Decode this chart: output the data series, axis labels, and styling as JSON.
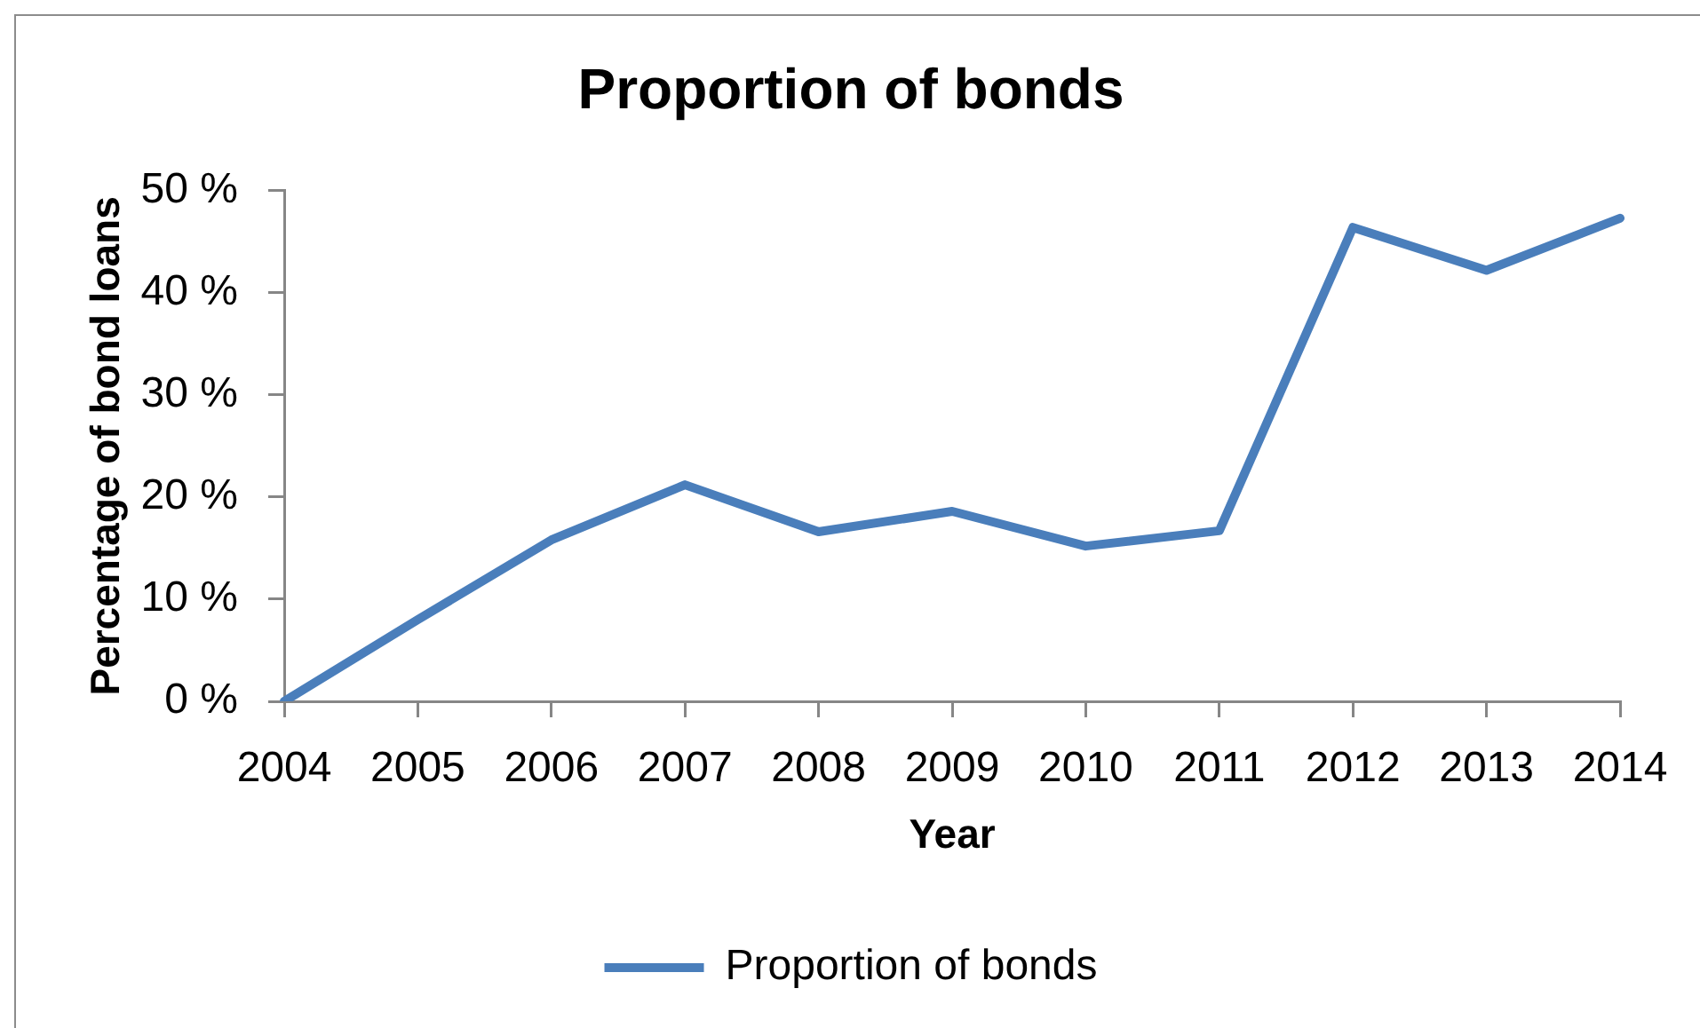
{
  "chart_data": {
    "type": "line",
    "title": "Proportion of bonds",
    "xlabel": "Year",
    "ylabel": "Percentage of bond loans",
    "categories": [
      "2004",
      "2005",
      "2006",
      "2007",
      "2008",
      "2009",
      "2010",
      "2011",
      "2012",
      "2013",
      "2014"
    ],
    "series": [
      {
        "name": "Proportion of bonds",
        "color": "#4a7ebb",
        "values": [
          0,
          8,
          15.8,
          21.2,
          16.6,
          18.6,
          15.2,
          16.7,
          46.4,
          42.2,
          47.3
        ]
      }
    ],
    "ylim": [
      0,
      50
    ],
    "yticks": [
      {
        "value": 0,
        "label": "0 %"
      },
      {
        "value": 10,
        "label": "10 %"
      },
      {
        "value": 20,
        "label": "20 %"
      },
      {
        "value": 30,
        "label": "30 %"
      },
      {
        "value": 40,
        "label": "40 %"
      },
      {
        "value": 50,
        "label": "50 %"
      }
    ],
    "grid": false,
    "legend": "bottom",
    "marker": "none",
    "line_style": "solid"
  }
}
